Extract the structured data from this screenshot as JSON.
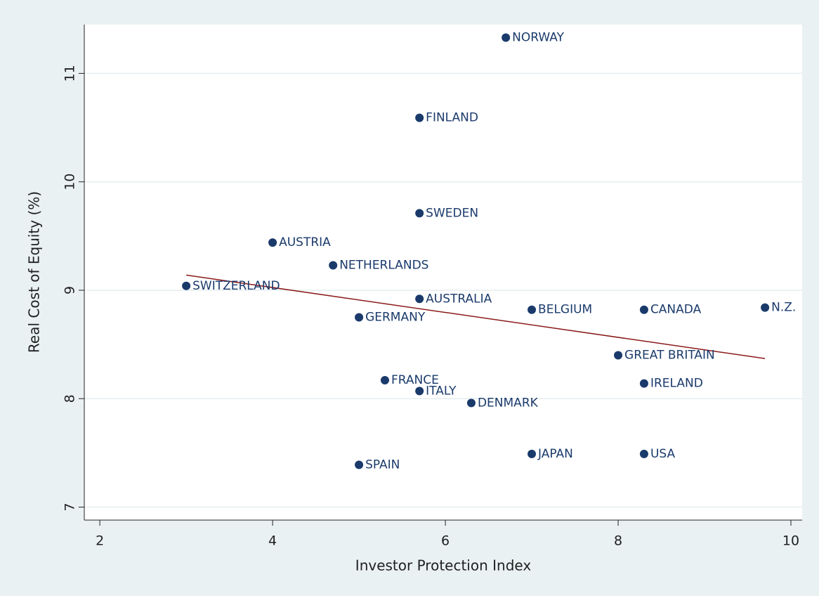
{
  "chart_data": {
    "type": "scatter",
    "x_label": "Investor Protection Index",
    "y_label": "Real Cost of Equity (%)",
    "x": [
      6.7,
      5.7,
      5.7,
      4.0,
      4.7,
      3.0,
      5.7,
      7.0,
      8.3,
      9.7,
      5.0,
      8.0,
      5.3,
      5.7,
      8.3,
      6.3,
      7.0,
      8.3,
      5.0
    ],
    "series": [
      {
        "color": "#1a3a6b",
        "values": [
          11.33,
          10.59,
          9.71,
          9.44,
          9.23,
          9.04,
          8.92,
          8.82,
          8.82,
          8.84,
          8.75,
          8.4,
          8.17,
          8.07,
          8.14,
          7.96,
          7.49,
          7.49,
          7.39
        ],
        "point_labels": [
          "NORWAY",
          "FINLAND",
          "SWEDEN",
          "AUSTRIA",
          "NETHERLANDS",
          "SWITZERLAND",
          "AUSTRALIA",
          "BELGIUM",
          "CANADA",
          "N.Z.",
          "GERMANY",
          "GREAT BRITAIN",
          "FRANCE",
          "ITALY",
          "IRELAND",
          "DENMARK",
          "JAPAN",
          "USA",
          "SPAIN"
        ]
      }
    ],
    "fit_line": {
      "x": [
        3.0,
        9.7
      ],
      "values": [
        9.14,
        8.37
      ],
      "color": "#8b1a1a"
    },
    "xlim": [
      1.82,
      10.13
    ],
    "ylim": [
      6.88,
      11.45
    ],
    "xticks": [
      2,
      4,
      6,
      8,
      10
    ],
    "yticks": [
      7,
      8,
      9,
      10,
      11
    ],
    "grid": true
  }
}
